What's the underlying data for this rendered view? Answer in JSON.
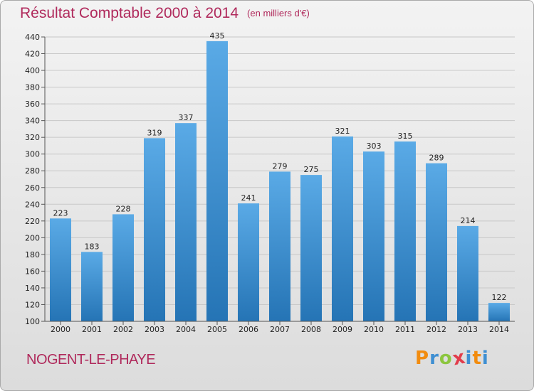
{
  "title": "Résultat Comptable 2000 à 2014",
  "subtitle": "(en milliers d'€)",
  "commune": "NOGENT-LE-PHAYE",
  "logo": {
    "letters": [
      "P",
      "r",
      "o",
      "x",
      "i",
      "t",
      "i"
    ]
  },
  "colors": {
    "accent": "#b02a5c",
    "bar_top": "#5aaae6",
    "bar_bottom": "#2574b5",
    "logo_letters": [
      "#f28c0f",
      "#3f8fd2",
      "#8cc63f",
      "#e23c4b",
      "#3f8fd2",
      "#f28c0f",
      "#3f8fd2"
    ]
  },
  "chart_data": {
    "type": "bar",
    "title": "Résultat Comptable 2000 à 2014",
    "subtitle": "(en milliers d'€)",
    "xlabel": "",
    "ylabel": "",
    "categories": [
      "2000",
      "2001",
      "2002",
      "2003",
      "2004",
      "2005",
      "2006",
      "2007",
      "2008",
      "2009",
      "2010",
      "2011",
      "2012",
      "2013",
      "2014"
    ],
    "values": [
      223,
      183,
      228,
      319,
      337,
      435,
      241,
      279,
      275,
      321,
      303,
      315,
      289,
      214,
      122
    ],
    "ylim": [
      100,
      440
    ],
    "yticks": [
      100,
      120,
      140,
      160,
      180,
      200,
      220,
      240,
      260,
      280,
      300,
      320,
      340,
      360,
      380,
      400,
      420,
      440
    ],
    "grid": true,
    "legend": "none"
  }
}
